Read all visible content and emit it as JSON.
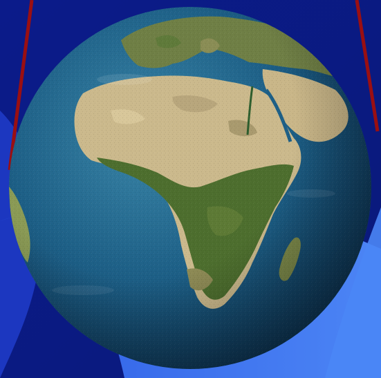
{
  "scene": {
    "subject": "globe",
    "colors": {
      "background_dark": "#0a1a86",
      "background_mid": "#1f3fd0",
      "background_light": "#3f78f2",
      "ocean": "#1d5f86",
      "ocean_deep": "#123f63",
      "land_desert": "#cfbd8e",
      "land_green": "#4a6f2c",
      "land_savanna": "#8b8f52",
      "frame_line": "#9a0f12"
    }
  }
}
